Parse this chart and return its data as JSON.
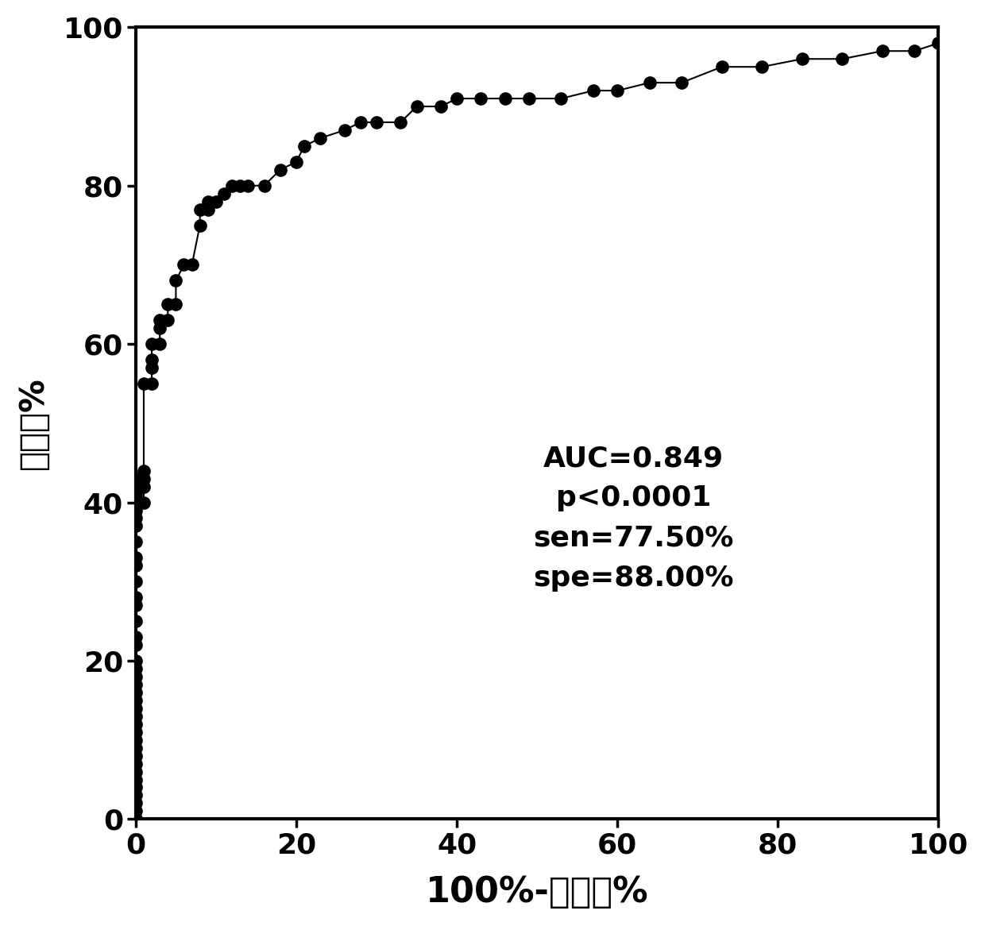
{
  "xlabel": "100%-特异性%",
  "ylabel": "灵敏度%",
  "annotation": "AUC=0.849\np<0.0001\nsen=77.50%\nspe=88.00%",
  "annotation_fontsize": 26,
  "xlabel_fontsize": 32,
  "ylabel_fontsize": 30,
  "tick_fontsize": 26,
  "xlim": [
    0,
    100
  ],
  "ylim": [
    0,
    100
  ],
  "xticks": [
    0,
    20,
    40,
    60,
    80,
    100
  ],
  "yticks": [
    0,
    20,
    40,
    60,
    80,
    100
  ],
  "background_color": "#ffffff",
  "marker_color": "#000000",
  "line_color": "#000000",
  "marker_size": 12,
  "line_width": 1.5,
  "roc_x": [
    0,
    0,
    0,
    0,
    0,
    0,
    0,
    0,
    0,
    0,
    0,
    0,
    0,
    0,
    0,
    0,
    0,
    0,
    0,
    0,
    0,
    0,
    0,
    0,
    0,
    0,
    0,
    0,
    0,
    0,
    0,
    0,
    0,
    0,
    0,
    0,
    0,
    1,
    1,
    1,
    1,
    1,
    2,
    2,
    2,
    2,
    3,
    3,
    3,
    4,
    4,
    5,
    5,
    6,
    7,
    8,
    8,
    9,
    9,
    10,
    11,
    12,
    13,
    14,
    16,
    18,
    20,
    21,
    23,
    26,
    28,
    30,
    33,
    35,
    38,
    40,
    43,
    46,
    49,
    53,
    57,
    60,
    64,
    68,
    73,
    78,
    83,
    88,
    93,
    97,
    100
  ],
  "roc_y": [
    0,
    1,
    2,
    3,
    4,
    5,
    6,
    7,
    8,
    9,
    10,
    11,
    12,
    13,
    14,
    15,
    16,
    17,
    18,
    19,
    20,
    22,
    23,
    25,
    27,
    28,
    30,
    32,
    33,
    35,
    37,
    38,
    39,
    40,
    41,
    42,
    43,
    40,
    42,
    43,
    44,
    55,
    55,
    57,
    58,
    60,
    60,
    62,
    63,
    63,
    65,
    65,
    68,
    70,
    70,
    75,
    77,
    77,
    78,
    78,
    79,
    80,
    80,
    80,
    80,
    82,
    83,
    85,
    86,
    87,
    88,
    88,
    88,
    90,
    90,
    91,
    91,
    91,
    91,
    91,
    92,
    92,
    93,
    93,
    95,
    95,
    96,
    96,
    97,
    97,
    98
  ]
}
